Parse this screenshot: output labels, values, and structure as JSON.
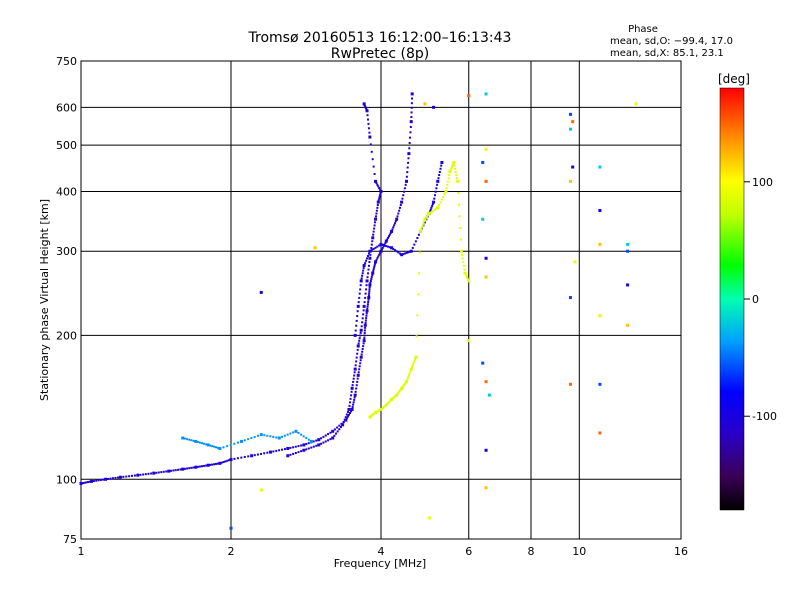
{
  "chart_data": {
    "type": "scatter",
    "title": "Tromsø 20160513 16:12:00–16:13:43",
    "subtitle": "RwPretec (8p)",
    "xlabel": "Frequency [MHz]",
    "ylabel": "Stationary phase Virtual Height [km]",
    "x_scale": "log",
    "y_scale": "log",
    "xlim": [
      1,
      16
    ],
    "ylim": [
      75,
      750
    ],
    "x_ticks": [
      1,
      2,
      4,
      6,
      8,
      10,
      16
    ],
    "y_ticks": [
      75,
      100,
      200,
      300,
      400,
      500,
      600,
      750
    ],
    "x_tick_labels": [
      "1",
      "2",
      "4",
      "6",
      "8",
      "10",
      "16"
    ],
    "y_tick_labels": [
      "75",
      "100",
      "200",
      "300",
      "400",
      "500",
      "600",
      "750"
    ],
    "grid": true,
    "stats": {
      "heading": "Phase",
      "line_o": "mean, sd,O: −99.4, 17.0",
      "line_x": "mean, sd,X:  85.1, 23.1"
    },
    "colorbar": {
      "label": "[deg]",
      "range": [
        -180,
        180
      ],
      "tick_values": [
        100,
        0,
        -100
      ],
      "tick_labels": [
        "100",
        "0",
        "-100"
      ]
    },
    "series": [
      {
        "trace": "o",
        "phase": -105,
        "points": [
          [
            1.0,
            98
          ],
          [
            1.05,
            99
          ],
          [
            1.12,
            100
          ],
          [
            1.2,
            101
          ],
          [
            1.3,
            102
          ],
          [
            1.4,
            103
          ],
          [
            1.5,
            104
          ],
          [
            1.6,
            105
          ],
          [
            1.7,
            106
          ],
          [
            1.8,
            107
          ],
          [
            1.9,
            108
          ],
          [
            2.0,
            110
          ],
          [
            2.2,
            112
          ],
          [
            2.4,
            114
          ],
          [
            2.6,
            116
          ],
          [
            2.8,
            118
          ],
          [
            3.0,
            121
          ],
          [
            3.2,
            126
          ],
          [
            3.4,
            133
          ],
          [
            3.5,
            140
          ],
          [
            3.55,
            150
          ],
          [
            3.6,
            165
          ],
          [
            3.65,
            180
          ],
          [
            3.7,
            195
          ],
          [
            3.72,
            210
          ],
          [
            3.75,
            225
          ],
          [
            3.78,
            240
          ],
          [
            3.8,
            255
          ],
          [
            3.85,
            270
          ],
          [
            3.9,
            285
          ],
          [
            4.0,
            300
          ],
          [
            4.1,
            315
          ],
          [
            4.2,
            330
          ],
          [
            4.3,
            350
          ],
          [
            4.4,
            380
          ],
          [
            4.5,
            420
          ],
          [
            4.55,
            480
          ],
          [
            4.6,
            560
          ],
          [
            4.62,
            640
          ]
        ]
      },
      {
        "trace": "o2",
        "phase": -110,
        "points": [
          [
            2.6,
            112
          ],
          [
            2.8,
            115
          ],
          [
            3.0,
            118
          ],
          [
            3.2,
            122
          ],
          [
            3.35,
            130
          ],
          [
            3.45,
            140
          ],
          [
            3.5,
            155
          ],
          [
            3.55,
            170
          ],
          [
            3.6,
            190
          ],
          [
            3.65,
            205
          ],
          [
            3.7,
            230
          ],
          [
            3.75,
            260
          ],
          [
            3.8,
            290
          ],
          [
            3.85,
            320
          ],
          [
            3.9,
            350
          ],
          [
            3.95,
            380
          ],
          [
            4.0,
            400
          ],
          [
            3.9,
            420
          ],
          [
            3.8,
            520
          ],
          [
            3.75,
            590
          ],
          [
            3.7,
            610
          ]
        ]
      },
      {
        "trace": "o3",
        "phase": -100,
        "points": [
          [
            3.55,
            200
          ],
          [
            3.6,
            230
          ],
          [
            3.65,
            260
          ],
          [
            3.7,
            280
          ],
          [
            3.8,
            300
          ],
          [
            4.0,
            310
          ],
          [
            4.2,
            305
          ],
          [
            4.4,
            295
          ],
          [
            4.6,
            300
          ],
          [
            4.8,
            330
          ],
          [
            5.0,
            360
          ],
          [
            5.1,
            380
          ],
          [
            5.2,
            420
          ],
          [
            5.3,
            460
          ]
        ]
      },
      {
        "trace": "x",
        "phase": 85,
        "points": [
          [
            3.8,
            135
          ],
          [
            3.9,
            138
          ],
          [
            4.0,
            140
          ],
          [
            4.1,
            143
          ],
          [
            4.2,
            147
          ],
          [
            4.3,
            150
          ],
          [
            4.4,
            155
          ],
          [
            4.5,
            160
          ],
          [
            4.6,
            170
          ],
          [
            4.7,
            180
          ],
          [
            4.8,
            330
          ],
          [
            4.9,
            350
          ],
          [
            5.0,
            360
          ],
          [
            5.2,
            370
          ],
          [
            5.4,
            400
          ],
          [
            5.5,
            440
          ],
          [
            5.6,
            460
          ],
          [
            5.7,
            420
          ],
          [
            5.8,
            300
          ],
          [
            5.9,
            270
          ],
          [
            6.0,
            260
          ]
        ]
      },
      {
        "trace": "e-layer",
        "phase": -40,
        "points": [
          [
            1.6,
            122
          ],
          [
            1.7,
            120
          ],
          [
            1.8,
            118
          ],
          [
            1.9,
            116
          ],
          [
            2.1,
            120
          ],
          [
            2.3,
            124
          ],
          [
            2.5,
            122
          ],
          [
            2.7,
            126
          ],
          [
            2.9,
            120
          ]
        ]
      }
    ],
    "sparse_points": [
      [
        2.3,
        246
      ],
      [
        2.95,
        305
      ],
      [
        2.3,
        95
      ],
      [
        2.0,
        79
      ],
      [
        6.0,
        635
      ],
      [
        6.5,
        640
      ],
      [
        5.1,
        600
      ],
      [
        4.9,
        610
      ],
      [
        6.5,
        490
      ],
      [
        6.4,
        460
      ],
      [
        6.5,
        420
      ],
      [
        6.4,
        350
      ],
      [
        6.5,
        290
      ],
      [
        6.5,
        265
      ],
      [
        6.0,
        195
      ],
      [
        6.4,
        175
      ],
      [
        6.5,
        160
      ],
      [
        6.6,
        150
      ],
      [
        6.5,
        115
      ],
      [
        6.5,
        96
      ],
      [
        5.0,
        83
      ],
      [
        9.6,
        580
      ],
      [
        9.7,
        560
      ],
      [
        9.6,
        540
      ],
      [
        9.7,
        450
      ],
      [
        9.6,
        420
      ],
      [
        9.8,
        285
      ],
      [
        9.6,
        240
      ],
      [
        9.6,
        158
      ],
      [
        11.0,
        450
      ],
      [
        11.0,
        365
      ],
      [
        11.0,
        310
      ],
      [
        11.0,
        220
      ],
      [
        11.0,
        158
      ],
      [
        11.0,
        125
      ],
      [
        12.5,
        310
      ],
      [
        12.5,
        255
      ],
      [
        12.5,
        210
      ],
      [
        13.0,
        610
      ],
      [
        12.5,
        300
      ]
    ]
  }
}
